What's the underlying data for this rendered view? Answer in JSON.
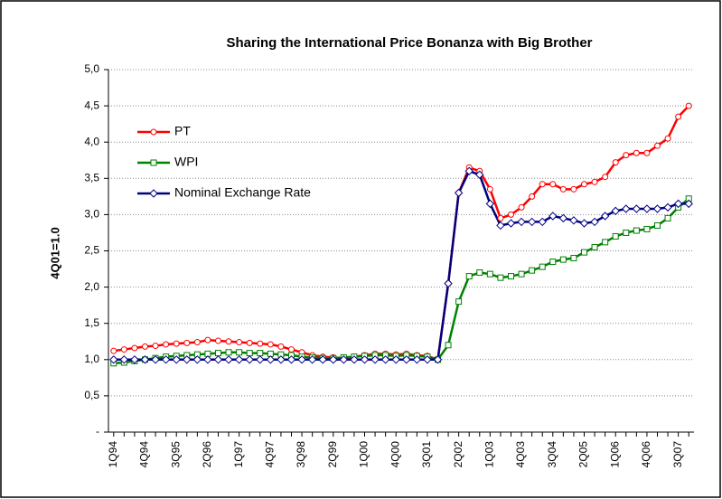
{
  "chart_data": {
    "type": "line",
    "title": "Sharing the International Price Bonanza with Big Brother",
    "y_label": "4Q01=1.0",
    "categories": [
      "1Q94",
      null,
      null,
      "4Q94",
      null,
      null,
      "3Q95",
      null,
      null,
      "2Q96",
      null,
      null,
      "1Q97",
      null,
      null,
      "4Q97",
      null,
      null,
      "3Q98",
      null,
      null,
      "2Q99",
      null,
      null,
      "1Q00",
      null,
      null,
      "4Q00",
      null,
      null,
      "3Q01",
      null,
      null,
      "2Q02",
      null,
      null,
      "1Q03",
      null,
      null,
      "4Q03",
      null,
      null,
      "3Q04",
      null,
      null,
      "2Q05",
      null,
      null,
      "1Q06",
      null,
      null,
      "4Q06",
      null,
      null,
      "3Q07",
      null
    ],
    "series": [
      {
        "name": "PT",
        "color": "#ff0000",
        "marker": "circle",
        "values": [
          1.12,
          1.14,
          1.16,
          1.18,
          1.19,
          1.21,
          1.22,
          1.23,
          1.24,
          1.27,
          1.26,
          1.25,
          1.24,
          1.23,
          1.22,
          1.21,
          1.18,
          1.14,
          1.1,
          1.06,
          1.04,
          1.03,
          1.02,
          1.04,
          1.06,
          1.08,
          1.08,
          1.07,
          1.08,
          1.06,
          1.05,
          1.0,
          2.05,
          3.3,
          3.65,
          3.6,
          3.35,
          2.95,
          3.0,
          3.1,
          3.25,
          3.42,
          3.42,
          3.35,
          3.35,
          3.42,
          3.45,
          3.52,
          3.72,
          3.82,
          3.85,
          3.85,
          3.95,
          4.05,
          4.35,
          4.5
        ]
      },
      {
        "name": "WPI",
        "color": "#008000",
        "marker": "square",
        "values": [
          0.95,
          0.96,
          0.98,
          1.0,
          1.02,
          1.04,
          1.05,
          1.06,
          1.07,
          1.08,
          1.09,
          1.1,
          1.1,
          1.09,
          1.09,
          1.08,
          1.07,
          1.06,
          1.04,
          1.03,
          1.02,
          1.02,
          1.03,
          1.04,
          1.05,
          1.06,
          1.06,
          1.05,
          1.06,
          1.05,
          1.04,
          1.0,
          1.2,
          1.8,
          2.15,
          2.2,
          2.18,
          2.13,
          2.15,
          2.18,
          2.23,
          2.28,
          2.35,
          2.38,
          2.4,
          2.48,
          2.55,
          2.62,
          2.7,
          2.75,
          2.78,
          2.8,
          2.85,
          2.95,
          3.1,
          3.22
        ]
      },
      {
        "name": "Nominal Exchange Rate",
        "color": "#000080",
        "marker": "diamond",
        "values": [
          1.0,
          1.0,
          1.0,
          1.0,
          1.0,
          1.0,
          1.0,
          1.0,
          1.0,
          1.0,
          1.0,
          1.0,
          1.0,
          1.0,
          1.0,
          1.0,
          1.0,
          1.0,
          1.0,
          1.0,
          1.0,
          1.0,
          1.0,
          1.0,
          1.0,
          1.0,
          1.0,
          1.0,
          1.0,
          1.0,
          1.0,
          1.0,
          2.05,
          3.3,
          3.6,
          3.55,
          3.15,
          2.85,
          2.88,
          2.9,
          2.9,
          2.9,
          2.98,
          2.95,
          2.92,
          2.88,
          2.9,
          2.98,
          3.05,
          3.08,
          3.08,
          3.08,
          3.08,
          3.1,
          3.15,
          3.15
        ]
      }
    ],
    "ylim": [
      0,
      5
    ],
    "yticks": [
      {
        "value": 0,
        "label": "-"
      },
      {
        "value": 0.5,
        "label": "0,5"
      },
      {
        "value": 1,
        "label": "1,0"
      },
      {
        "value": 1.5,
        "label": "1,5"
      },
      {
        "value": 2,
        "label": "2,0"
      },
      {
        "value": 2.5,
        "label": "2,5"
      },
      {
        "value": 3,
        "label": "3,0"
      },
      {
        "value": 3.5,
        "label": "3,5"
      },
      {
        "value": 4,
        "label": "4,0"
      },
      {
        "value": 4.5,
        "label": "4,5"
      },
      {
        "value": 5,
        "label": "5,0"
      }
    ],
    "grid": true,
    "legend": "upper left"
  }
}
